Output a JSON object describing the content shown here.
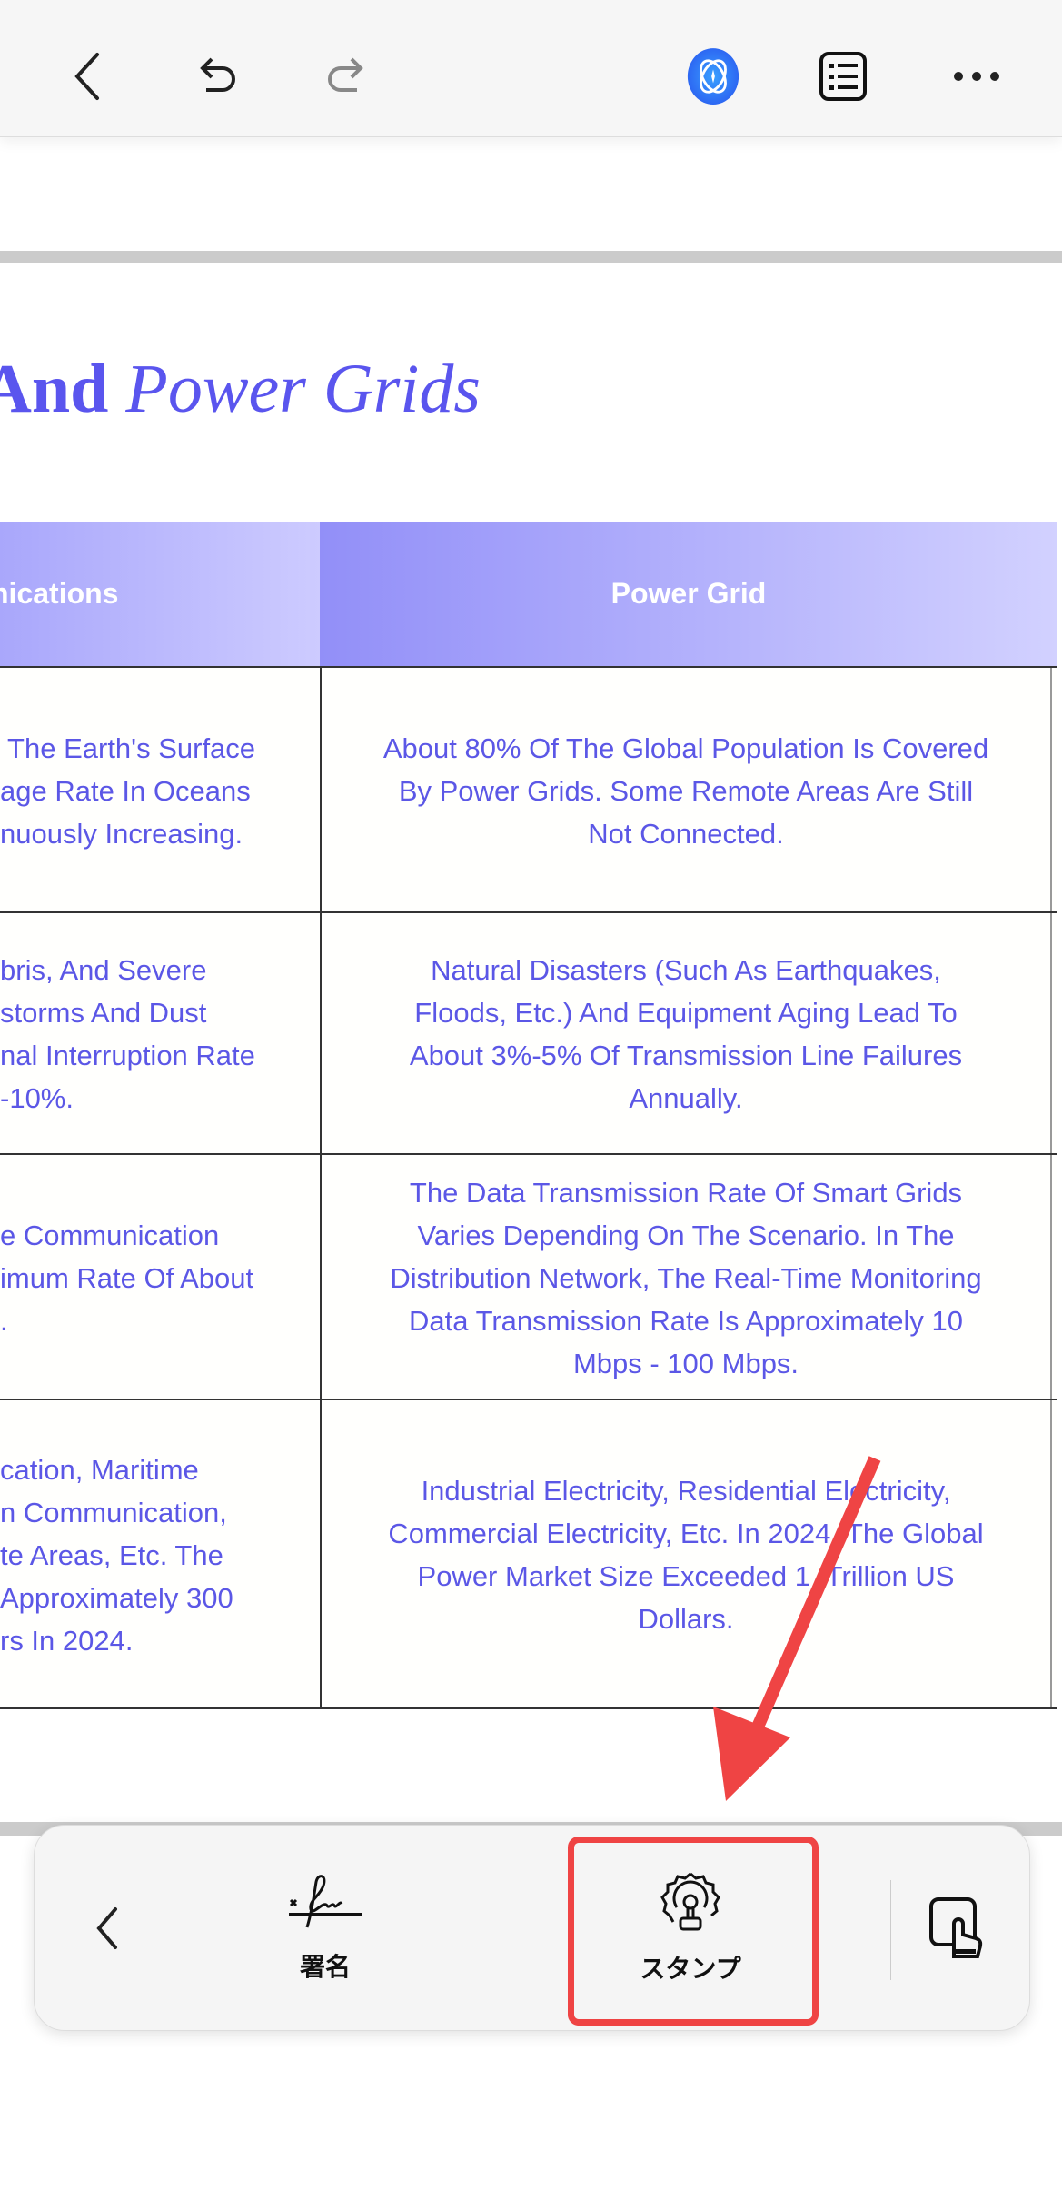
{
  "toolbar_top": {
    "icons": [
      "back-icon",
      "undo-icon",
      "redo-icon",
      "ai-assistant-icon",
      "outline-list-icon",
      "more-icon"
    ]
  },
  "document": {
    "title_bold": "And",
    "title_italic": "Power Grids",
    "table": {
      "headers": [
        "nications",
        "Power Grid"
      ],
      "rows": [
        {
          "left": [
            " The Earth's Surface",
            "age Rate In Oceans",
            "nuously Increasing."
          ],
          "right": [
            "About 80% Of The Global Population Is Covered",
            "By Power Grids. Some Remote Areas Are Still",
            "Not Connected."
          ]
        },
        {
          "left": [
            "bris, And Severe",
            "storms And Dust",
            "nal Interruption Rate",
            "-10%."
          ],
          "right": [
            "Natural Disasters (Such As Earthquakes,",
            "Floods, Etc.) And Equipment Aging Lead To",
            "About 3%-5% Of Transmission Line Failures",
            "Annually."
          ]
        },
        {
          "left": [
            "e Communication",
            "imum Rate Of About",
            "."
          ],
          "right": [
            "The Data Transmission Rate Of Smart Grids",
            "Varies Depending On The Scenario. In The",
            "Distribution Network, The Real-Time Monitoring",
            "Data Transmission Rate Is Approximately 10",
            "Mbps - 100 Mbps."
          ]
        },
        {
          "left": [
            "cation, Maritime",
            "n Communication,",
            "te Areas, Etc. The",
            "Approximately 300",
            "rs In 2024."
          ],
          "right": [
            "Industrial Electricity, Residential Electricity,",
            "Commercial Electricity, Etc. In 2024, The Global",
            "Power Market Size Exceeded 1  Trillion US",
            "Dollars."
          ]
        }
      ]
    }
  },
  "bottom_toolbar": {
    "signature_label": "署名",
    "stamp_label": "スタンプ"
  },
  "colors": {
    "accent": "#5b57e6",
    "highlight": "#ef4444"
  }
}
